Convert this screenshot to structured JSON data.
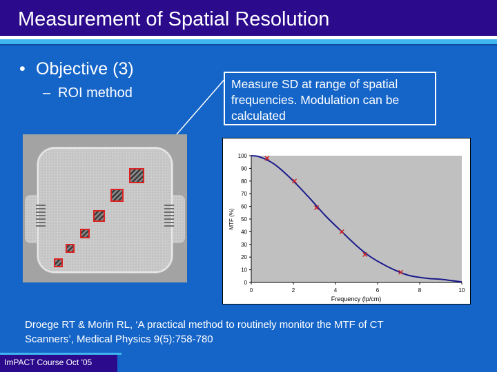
{
  "slide": {
    "title": "Measurement of Spatial Resolution",
    "bullet": "Objective (3)",
    "bullet_marker": "•",
    "sub_bullet": "ROI method",
    "sub_marker": "–",
    "callout_lines": [
      "Measure SD at range of spatial",
      "frequencies.  Modulation can be",
      "calculated"
    ],
    "reference_lines": [
      "Droege RT & Morin RL, ‘A practical method to routinely monitor the MTF of CT",
      "Scanners’, Medical Physics 9(5):758-780"
    ],
    "footer": "ImPACT Course Oct '05"
  },
  "colors": {
    "background": "#1565c9",
    "title_bar": "#2b0a8c",
    "accent_stripe": "#3fb6f0",
    "curve": "#1a1a8c",
    "marker": "#cc2222",
    "plot_area": "#c0c0c0",
    "roi_outline": "#dd2222"
  },
  "chart_data": {
    "type": "line",
    "xlabel": "Frequency (lp/cm)",
    "ylabel": "MTF (%)",
    "xlim": [
      0,
      10
    ],
    "ylim": [
      0,
      100
    ],
    "xticks": [
      0,
      2,
      4,
      6,
      8,
      10
    ],
    "yticks": [
      0,
      10,
      20,
      30,
      40,
      50,
      60,
      70,
      80,
      90,
      100
    ],
    "grid": false,
    "curve": {
      "x": [
        0,
        0.3,
        0.7,
        1.2,
        2.0,
        2.8,
        3.5,
        4.3,
        5.0,
        5.6,
        6.3,
        7.0,
        7.5,
        8.0,
        8.5,
        9.0,
        9.5,
        10.0
      ],
      "y": [
        100,
        99.5,
        97,
        92,
        80,
        66,
        53,
        40,
        29,
        21,
        14,
        8.5,
        5.5,
        4,
        3,
        2.5,
        1.5,
        0.5
      ]
    },
    "markers": {
      "x": [
        0.75,
        2.05,
        3.1,
        4.3,
        5.4,
        7.1
      ],
      "y": [
        98,
        80,
        59,
        40,
        22,
        8
      ]
    }
  },
  "ct_image": {
    "roi_count": 6
  }
}
